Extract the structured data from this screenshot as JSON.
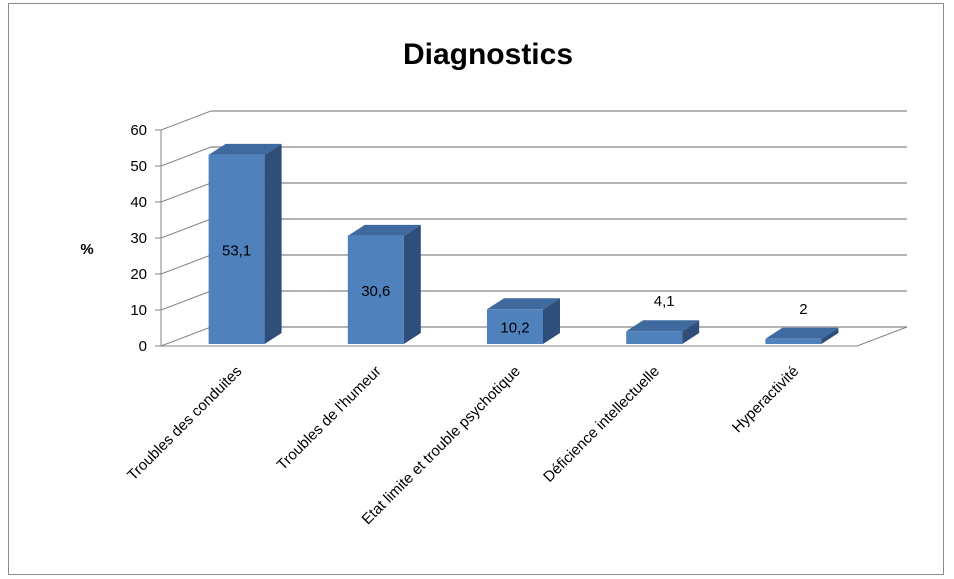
{
  "chart_data": {
    "type": "bar",
    "title": "Diagnostics",
    "ylabel": "%",
    "xlabel": "",
    "categories": [
      "Troubles des conduites",
      "Troubles de l'humeur",
      "Etat limite et trouble psychotique",
      "Déficience intellectuelle",
      "Hyperactivité"
    ],
    "values": [
      53.1,
      30.6,
      10.2,
      4.1,
      2
    ],
    "value_labels": [
      "53,1",
      "30,6",
      "10,2",
      "4,1",
      "2"
    ],
    "yticks": [
      "0",
      "10",
      "20",
      "30",
      "40",
      "50",
      "60"
    ],
    "ylim": [
      0,
      60
    ],
    "grid": true,
    "legend": "none",
    "style": "3d-column",
    "colors": {
      "bar_front": "#4f81bd",
      "bar_side": "#2f4f7a",
      "bar_top": "#3f6a9f",
      "grid": "#868686"
    }
  }
}
